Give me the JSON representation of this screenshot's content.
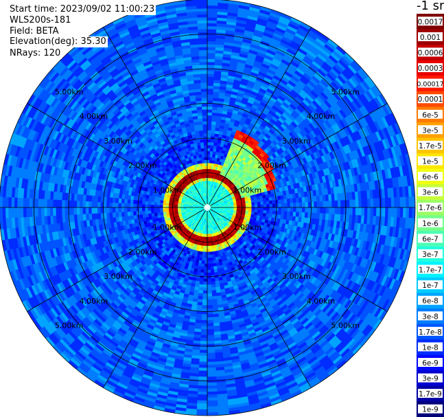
{
  "header": {
    "start_time": "Start time: 2023/09/02 11:00:23",
    "instrument": "WLS200s-181",
    "field": "Field: BETA",
    "elevation": "Elevation(deg): 35.30",
    "nrays": "NRays: 120"
  },
  "colorbar": {
    "title": "-1 sr",
    "labels": [
      "0.0017",
      "0.001",
      "0.0006",
      "0.0003",
      "0.00017",
      "0.0001",
      "6e-5",
      "3e-5",
      "1.7e-5",
      "1e-5",
      "6e-6",
      "3e-6",
      "1.7e-6",
      "1e-6",
      "6e-7",
      "3e-7",
      "1.7e-7",
      "1e-7",
      "6e-8",
      "3e-8",
      "1.7e-8",
      "1e-8",
      "6e-9",
      "3e-9",
      "1.7e-9",
      "1e-9"
    ],
    "colors": [
      "#7f0000",
      "#9e0000",
      "#c40000",
      "#e80000",
      "#ff1a00",
      "#ff4a00",
      "#ff7a00",
      "#ffa000",
      "#ffc400",
      "#ffe600",
      "#f0ff10",
      "#c6ff3a",
      "#9cff64",
      "#74ff8c",
      "#4cffb4",
      "#24ffdc",
      "#00f4ff",
      "#00ccff",
      "#00a4ff",
      "#007cff",
      "#0054ff",
      "#002cff",
      "#0008ff",
      "#0000d0",
      "#0000a4",
      "#00007a"
    ]
  },
  "chart_data": {
    "type": "heatmap",
    "projection": "polar PPI",
    "field": "BETA",
    "elevation_deg": 35.3,
    "n_rays": 120,
    "range_ring_labels": [
      "1.00km",
      "2.00km",
      "3.00km",
      "4.00km",
      "5.00km"
    ],
    "range_rings_km": [
      1,
      2,
      3,
      4,
      5
    ],
    "max_range_km": 6.0,
    "spokes_deg": [
      0,
      30,
      60,
      90,
      120,
      150,
      180,
      210,
      240,
      270,
      300,
      330
    ],
    "colormap": "jet",
    "scale": "log",
    "vmin": 1e-09,
    "vmax": 0.0017,
    "background_beta_range": [
      1e-08,
      6e-08
    ],
    "features": [
      {
        "description": "bright ring near 1 km",
        "range_km": 1.0,
        "beta": 0.001
      },
      {
        "description": "arc to north-east",
        "range_km_min": 1.0,
        "range_km_max": 2.3,
        "azimuth_deg_min": 20,
        "azimuth_deg_max": 75,
        "beta": 0.0003
      }
    ]
  }
}
